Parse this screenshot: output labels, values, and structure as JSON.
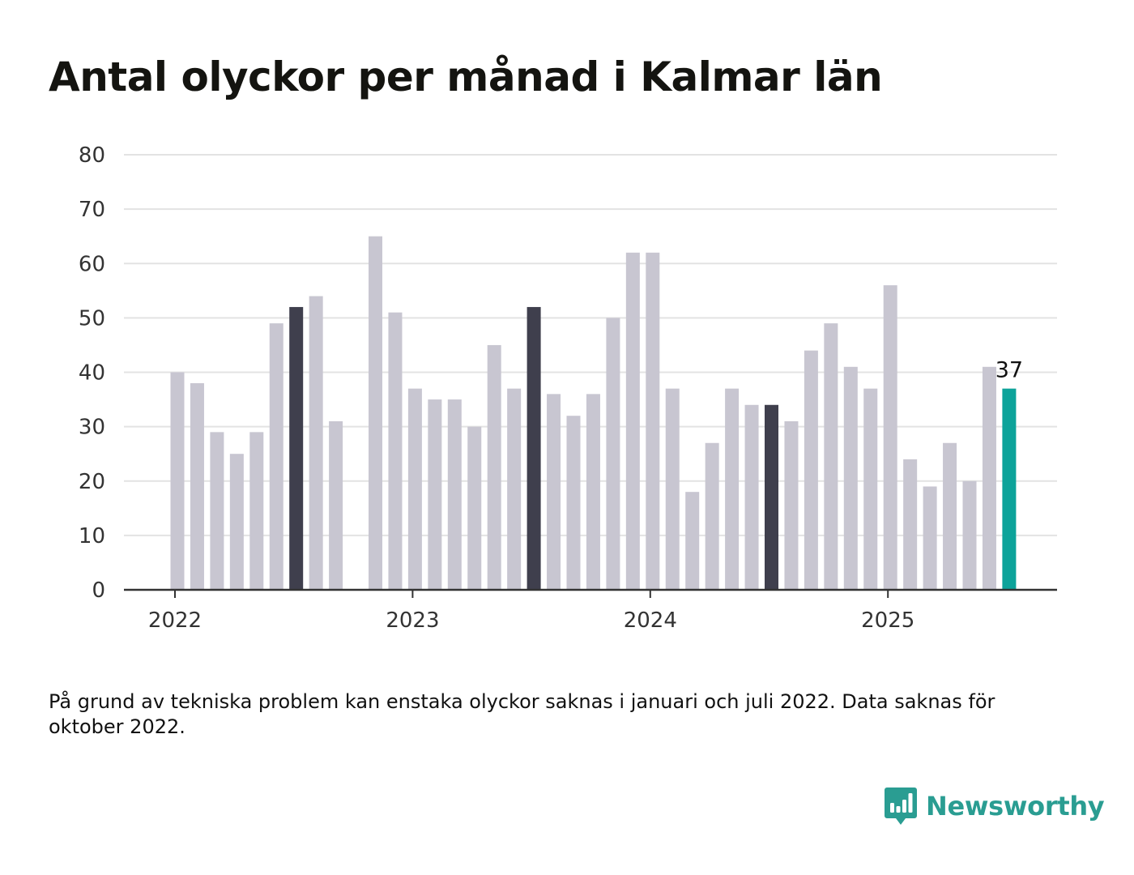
{
  "title": "Antal olyckor per månad i Kalmar län",
  "note": "På grund av tekniska problem kan enstaka olyckor saknas i januari och juli 2022. Data saknas för oktober 2022.",
  "brand": {
    "name": "Newsworthy",
    "color": "#2a9d92",
    "icon": "chat-bar-chart-icon"
  },
  "colors": {
    "bar": "#c8c6d1",
    "highlight": "#3f3f4d",
    "latest": "#0da39a",
    "grid": "#e3e3e3",
    "axis": "#333333"
  },
  "chart_data": {
    "type": "bar",
    "y_ticks": [
      0,
      10,
      20,
      30,
      40,
      50,
      60,
      70,
      80
    ],
    "ylim": [
      0,
      80
    ],
    "grid": true,
    "x_ticks": [
      "2022",
      "2023",
      "2024",
      "2025"
    ],
    "xlabel": "",
    "ylabel": "",
    "months": [
      "2022-01",
      "2022-02",
      "2022-03",
      "2022-04",
      "2022-05",
      "2022-06",
      "2022-07",
      "2022-08",
      "2022-09",
      "2022-10",
      "2022-11",
      "2022-12",
      "2023-01",
      "2023-02",
      "2023-03",
      "2023-04",
      "2023-05",
      "2023-06",
      "2023-07",
      "2023-08",
      "2023-09",
      "2023-10",
      "2023-11",
      "2023-12",
      "2024-01",
      "2024-02",
      "2024-03",
      "2024-04",
      "2024-05",
      "2024-06",
      "2024-07",
      "2024-08",
      "2024-09",
      "2024-10",
      "2024-11",
      "2024-12",
      "2025-01",
      "2025-02",
      "2025-03",
      "2025-04",
      "2025-05",
      "2025-06",
      "2025-07"
    ],
    "values": [
      40,
      38,
      29,
      25,
      29,
      49,
      52,
      54,
      31,
      null,
      65,
      51,
      37,
      35,
      35,
      30,
      45,
      37,
      52,
      36,
      32,
      36,
      50,
      62,
      62,
      37,
      18,
      27,
      37,
      34,
      34,
      31,
      44,
      49,
      41,
      37,
      56,
      24,
      19,
      27,
      20,
      41,
      37
    ],
    "highlight_months": [
      "2022-07",
      "2023-07",
      "2024-07"
    ],
    "latest_month": "2025-07",
    "latest_label": "37"
  }
}
